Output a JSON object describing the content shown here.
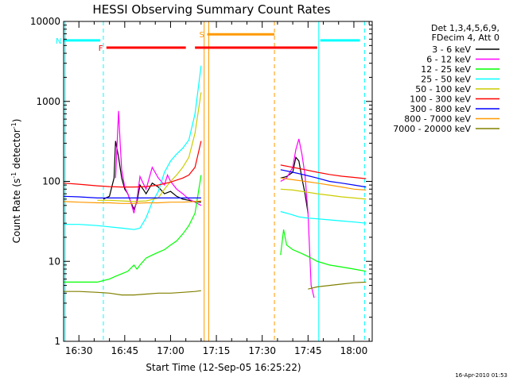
{
  "chart_data": {
    "type": "line",
    "title": "HESSI Observing Summary Count Rates",
    "xlabel": "Start Time (12-Sep-05 16:25:22)",
    "ylabel_main": "Count Rate (s",
    "ylabel_sup1": "-1",
    "ylabel_mid": " detector",
    "ylabel_sup2": "-1",
    "ylabel_end": ")",
    "y_scale": "log",
    "xlim": [
      1585,
      1686
    ],
    "ylim": [
      1,
      10000
    ],
    "x_ticks": [
      {
        "value": 1590,
        "label": "16:30"
      },
      {
        "value": 1605,
        "label": "16:45"
      },
      {
        "value": 1620,
        "label": "17:00"
      },
      {
        "value": 1635,
        "label": "17:15"
      },
      {
        "value": 1650,
        "label": "17:30"
      },
      {
        "value": 1665,
        "label": "17:45"
      },
      {
        "value": 1680,
        "label": "18:00"
      }
    ],
    "y_ticks": [
      {
        "value": 1,
        "label": "1"
      },
      {
        "value": 10,
        "label": "10"
      },
      {
        "value": 100,
        "label": "100"
      },
      {
        "value": 1000,
        "label": "1000"
      },
      {
        "value": 10000,
        "label": "10000"
      }
    ],
    "legend_header": [
      "Det 1,3,4,5,6,9,",
      "FDecim 4, Att 0"
    ],
    "series": [
      {
        "name": "3 - 6 keV",
        "color": "#000000",
        "segments": [
          [
            [
              1598,
              60
            ],
            [
              1600,
              65
            ],
            [
              1601.5,
              110
            ],
            [
              1602,
              320
            ],
            [
              1603,
              200
            ],
            [
              1604,
              110
            ],
            [
              1605,
              80
            ],
            [
              1606,
              70
            ],
            [
              1607,
              55
            ],
            [
              1608,
              45
            ],
            [
              1609,
              55
            ],
            [
              1610,
              90
            ],
            [
              1611,
              80
            ],
            [
              1612,
              70
            ],
            [
              1614,
              95
            ],
            [
              1616,
              85
            ],
            [
              1618,
              70
            ],
            [
              1620,
              75
            ],
            [
              1622,
              65
            ],
            [
              1624,
              60
            ],
            [
              1626,
              58
            ],
            [
              1628,
              56
            ],
            [
              1630,
              55
            ]
          ],
          [
            [
              1656,
              110
            ],
            [
              1658,
              115
            ],
            [
              1660,
              130
            ],
            [
              1661,
              200
            ],
            [
              1662,
              180
            ],
            [
              1663,
              110
            ],
            [
              1664,
              70
            ],
            [
              1665,
              40
            ]
          ]
        ]
      },
      {
        "name": "6 - 12 keV",
        "color": "#ff00ff",
        "segments": [
          [
            [
              1602,
              110
            ],
            [
              1603,
              760
            ],
            [
              1603.5,
              300
            ],
            [
              1604,
              140
            ],
            [
              1605,
              85
            ],
            [
              1606,
              70
            ],
            [
              1607,
              55
            ],
            [
              1608,
              40
            ],
            [
              1609,
              60
            ],
            [
              1610,
              115
            ],
            [
              1611,
              95
            ],
            [
              1612,
              80
            ],
            [
              1614,
              150
            ],
            [
              1616,
              110
            ],
            [
              1618,
              90
            ],
            [
              1619,
              120
            ],
            [
              1620,
              100
            ],
            [
              1622,
              80
            ],
            [
              1624,
              70
            ],
            [
              1626,
              60
            ],
            [
              1628,
              55
            ],
            [
              1630,
              50
            ]
          ],
          [
            [
              1656,
              100
            ],
            [
              1658,
              110
            ],
            [
              1660,
              150
            ],
            [
              1661,
              250
            ],
            [
              1662,
              340
            ],
            [
              1663,
              220
            ],
            [
              1664,
              120
            ],
            [
              1665,
              40
            ],
            [
              1666,
              5
            ],
            [
              1667,
              3.5
            ]
          ]
        ]
      },
      {
        "name": "12 - 25 keV",
        "color": "#00ff00",
        "segments": [
          [
            [
              1585,
              5.5
            ],
            [
              1590,
              5.5
            ],
            [
              1596,
              5.5
            ],
            [
              1600,
              6
            ],
            [
              1602,
              6.5
            ],
            [
              1604,
              7
            ],
            [
              1606,
              7.5
            ],
            [
              1608,
              9
            ],
            [
              1609,
              8
            ],
            [
              1610,
              9
            ],
            [
              1612,
              11
            ],
            [
              1614,
              12
            ],
            [
              1616,
              13
            ],
            [
              1618,
              14
            ],
            [
              1620,
              16
            ],
            [
              1622,
              18
            ],
            [
              1624,
              22
            ],
            [
              1626,
              28
            ],
            [
              1628,
              40
            ],
            [
              1630,
              120
            ]
          ],
          [
            [
              1656,
              12
            ],
            [
              1657,
              25
            ],
            [
              1658,
              16
            ],
            [
              1660,
              14
            ],
            [
              1662,
              13
            ],
            [
              1664,
              12
            ],
            [
              1666,
              11
            ],
            [
              1668,
              10
            ],
            [
              1670,
              9.5
            ],
            [
              1672,
              9
            ],
            [
              1676,
              8.5
            ],
            [
              1680,
              8
            ],
            [
              1684,
              7.5
            ]
          ]
        ]
      },
      {
        "name": "25 - 50 keV",
        "color": "#00ffff",
        "segments": [
          [
            [
              1585,
              29
            ],
            [
              1590,
              29
            ],
            [
              1596,
              28
            ],
            [
              1600,
              27
            ],
            [
              1604,
              26
            ],
            [
              1608,
              25
            ],
            [
              1610,
              26
            ],
            [
              1612,
              35
            ],
            [
              1614,
              55
            ],
            [
              1616,
              75
            ],
            [
              1618,
              130
            ],
            [
              1620,
              180
            ],
            [
              1622,
              220
            ],
            [
              1624,
              260
            ],
            [
              1626,
              330
            ],
            [
              1628,
              700
            ],
            [
              1630,
              2800
            ]
          ],
          [
            [
              1656,
              42
            ],
            [
              1658,
              40
            ],
            [
              1660,
              38
            ],
            [
              1662,
              36
            ],
            [
              1664,
              35
            ],
            [
              1668,
              34
            ],
            [
              1672,
              33
            ],
            [
              1676,
              32
            ],
            [
              1680,
              31
            ],
            [
              1684,
              30
            ]
          ]
        ]
      },
      {
        "name": "50 - 100 keV",
        "color": "#cccc00",
        "segments": [
          [
            [
              1596,
              58
            ],
            [
              1600,
              58
            ],
            [
              1604,
              57
            ],
            [
              1608,
              56
            ],
            [
              1612,
              57
            ],
            [
              1616,
              62
            ],
            [
              1618,
              80
            ],
            [
              1620,
              100
            ],
            [
              1622,
              120
            ],
            [
              1624,
              150
            ],
            [
              1626,
              200
            ],
            [
              1628,
              400
            ],
            [
              1630,
              1300
            ]
          ],
          [
            [
              1656,
              80
            ],
            [
              1660,
              78
            ],
            [
              1664,
              74
            ],
            [
              1668,
              70
            ],
            [
              1672,
              67
            ],
            [
              1676,
              64
            ],
            [
              1680,
              62
            ],
            [
              1684,
              60
            ]
          ]
        ]
      },
      {
        "name": "100 - 300 keV",
        "color": "#ff0000",
        "segments": [
          [
            [
              1585,
              95
            ],
            [
              1590,
              92
            ],
            [
              1596,
              88
            ],
            [
              1600,
              86
            ],
            [
              1604,
              85
            ],
            [
              1608,
              85
            ],
            [
              1612,
              86
            ],
            [
              1616,
              90
            ],
            [
              1620,
              98
            ],
            [
              1624,
              110
            ],
            [
              1626,
              120
            ],
            [
              1628,
              150
            ],
            [
              1630,
              320
            ]
          ],
          [
            [
              1656,
              160
            ],
            [
              1660,
              150
            ],
            [
              1664,
              140
            ],
            [
              1668,
              130
            ],
            [
              1672,
              122
            ],
            [
              1676,
              116
            ],
            [
              1680,
              112
            ],
            [
              1684,
              108
            ]
          ]
        ]
      },
      {
        "name": "300 - 800 keV",
        "color": "#0000ff",
        "segments": [
          [
            [
              1585,
              65
            ],
            [
              1590,
              64
            ],
            [
              1596,
              62
            ],
            [
              1600,
              62
            ],
            [
              1604,
              62
            ],
            [
              1608,
              62
            ],
            [
              1612,
              62
            ],
            [
              1616,
              62
            ],
            [
              1620,
              62
            ],
            [
              1624,
              62
            ],
            [
              1628,
              62
            ],
            [
              1630,
              62
            ]
          ],
          [
            [
              1656,
              140
            ],
            [
              1660,
              130
            ],
            [
              1664,
              120
            ],
            [
              1668,
              110
            ],
            [
              1672,
              100
            ],
            [
              1676,
              95
            ],
            [
              1680,
              90
            ],
            [
              1684,
              85
            ]
          ]
        ]
      },
      {
        "name": "800 - 7000 keV",
        "color": "#ff9900",
        "segments": [
          [
            [
              1585,
              56
            ],
            [
              1590,
              55
            ],
            [
              1596,
              54
            ],
            [
              1600,
              54
            ],
            [
              1604,
              53
            ],
            [
              1608,
              53
            ],
            [
              1612,
              54
            ],
            [
              1616,
              54
            ],
            [
              1620,
              55
            ],
            [
              1624,
              55
            ],
            [
              1628,
              56
            ],
            [
              1630,
              57
            ]
          ],
          [
            [
              1656,
              110
            ],
            [
              1660,
              105
            ],
            [
              1664,
              100
            ],
            [
              1668,
              95
            ],
            [
              1672,
              90
            ],
            [
              1676,
              85
            ],
            [
              1680,
              80
            ],
            [
              1684,
              78
            ]
          ]
        ]
      },
      {
        "name": "7000 - 20000 keV",
        "color": "#808000",
        "segments": [
          [
            [
              1585,
              4.2
            ],
            [
              1590,
              4.2
            ],
            [
              1596,
              4.1
            ],
            [
              1600,
              4.0
            ],
            [
              1604,
              3.8
            ],
            [
              1608,
              3.8
            ],
            [
              1612,
              3.9
            ],
            [
              1616,
              4.0
            ],
            [
              1620,
              4.0
            ],
            [
              1624,
              4.1
            ],
            [
              1628,
              4.2
            ],
            [
              1630,
              4.3
            ]
          ],
          [
            [
              1665,
              4.5
            ],
            [
              1668,
              4.8
            ],
            [
              1672,
              5.0
            ],
            [
              1676,
              5.2
            ],
            [
              1680,
              5.4
            ],
            [
              1684,
              5.5
            ]
          ]
        ]
      }
    ],
    "flags": [
      {
        "label": "N",
        "color": "#00ffff",
        "y": 5800,
        "segments": [
          [
            1585,
            1597
          ],
          [
            1669,
            1682
          ]
        ]
      },
      {
        "label": "F",
        "color": "#ff0000",
        "y": 4700,
        "segments": [
          [
            1599,
            1625
          ],
          [
            1628,
            1668
          ]
        ]
      },
      {
        "label": "S",
        "color": "#ff9900",
        "y": 6900,
        "segments": [
          [
            1632,
            1654
          ]
        ]
      }
    ],
    "vlines": [
      {
        "x": 1585.5,
        "color": "#00ffff",
        "dash": false
      },
      {
        "x": 1598,
        "color": "#00ffff",
        "dash": true
      },
      {
        "x": 1631,
        "color": "#ff9900",
        "dash": false
      },
      {
        "x": 1632.5,
        "color": "#ff9900",
        "dash": false
      },
      {
        "x": 1654,
        "color": "#ff9900",
        "dash": true
      },
      {
        "x": 1668.5,
        "color": "#00ffff",
        "dash": false
      },
      {
        "x": 1683.5,
        "color": "#00ffff",
        "dash": true
      }
    ]
  },
  "footer": {
    "timestamp": "16-Apr-2010 01:53"
  }
}
